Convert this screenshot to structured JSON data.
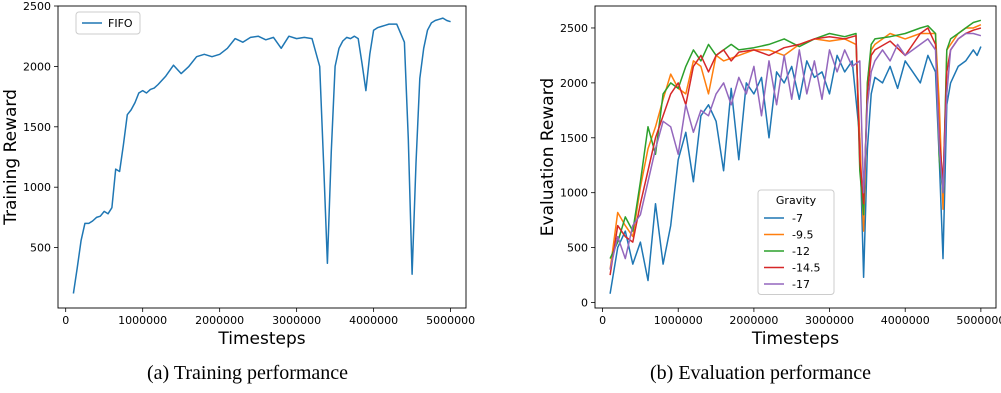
{
  "captions": {
    "left": "(a) Training performance",
    "right": "(b) Evaluation performance"
  },
  "chart_data": [
    {
      "type": "line",
      "xlabel": "Timesteps",
      "ylabel": "Training Reward",
      "xlim": [
        -100000,
        5200000
      ],
      "ylim": [
        0,
        2500
      ],
      "xticks": [
        0,
        1000000,
        2000000,
        3000000,
        4000000,
        5000000
      ],
      "xtick_labels": [
        "0",
        "1000000",
        "2000000",
        "3000000",
        "4000000",
        "5000000"
      ],
      "yticks": [
        500,
        1000,
        1500,
        2000,
        2500
      ],
      "ytick_labels": [
        "500",
        "1000",
        "1500",
        "2000",
        "2500"
      ],
      "legend": {
        "placement": "upper-left",
        "title": ""
      },
      "series": [
        {
          "name": "FIFO",
          "color": "#1f77b4",
          "x": [
            100000,
            150000,
            200000,
            250000,
            300000,
            350000,
            400000,
            450000,
            500000,
            550000,
            600000,
            650000,
            700000,
            750000,
            800000,
            850000,
            900000,
            950000,
            1000000,
            1050000,
            1100000,
            1150000,
            1200000,
            1300000,
            1400000,
            1500000,
            1600000,
            1700000,
            1800000,
            1900000,
            2000000,
            2100000,
            2200000,
            2300000,
            2400000,
            2500000,
            2600000,
            2700000,
            2800000,
            2900000,
            3000000,
            3100000,
            3200000,
            3300000,
            3350000,
            3400000,
            3450000,
            3500000,
            3550000,
            3600000,
            3650000,
            3700000,
            3750000,
            3800000,
            3850000,
            3900000,
            3950000,
            4000000,
            4050000,
            4100000,
            4150000,
            4200000,
            4300000,
            4400000,
            4450000,
            4500000,
            4550000,
            4600000,
            4650000,
            4700000,
            4750000,
            4800000,
            4850000,
            4900000,
            4950000,
            5000000
          ],
          "y": [
            120,
            330,
            560,
            700,
            700,
            720,
            750,
            760,
            800,
            780,
            830,
            1150,
            1130,
            1350,
            1600,
            1640,
            1700,
            1780,
            1800,
            1780,
            1810,
            1820,
            1850,
            1920,
            2010,
            1940,
            2000,
            2080,
            2100,
            2080,
            2100,
            2150,
            2230,
            2200,
            2240,
            2250,
            2220,
            2240,
            2150,
            2250,
            2230,
            2240,
            2230,
            2000,
            1200,
            370,
            1300,
            2000,
            2150,
            2210,
            2240,
            2230,
            2250,
            2230,
            2020,
            1800,
            2100,
            2300,
            2320,
            2330,
            2340,
            2350,
            2350,
            2200,
            1400,
            280,
            1200,
            1900,
            2150,
            2300,
            2360,
            2380,
            2390,
            2400,
            2380,
            2370
          ]
        }
      ]
    },
    {
      "type": "line",
      "xlabel": "Timesteps",
      "ylabel": "Evaluation Reward",
      "xlim": [
        -100000,
        5200000
      ],
      "ylim": [
        -50,
        2700
      ],
      "xticks": [
        0,
        1000000,
        2000000,
        3000000,
        4000000,
        5000000
      ],
      "xtick_labels": [
        "0",
        "1000000",
        "2000000",
        "3000000",
        "4000000",
        "5000000"
      ],
      "yticks": [
        0,
        500,
        1000,
        1500,
        2000,
        2500
      ],
      "ytick_labels": [
        "0",
        "500",
        "1000",
        "1500",
        "2000",
        "2500"
      ],
      "legend": {
        "placement": "lower-center",
        "title": "Gravity"
      },
      "series": [
        {
          "name": "-7",
          "color": "#1f77b4",
          "x": [
            100000,
            200000,
            300000,
            400000,
            500000,
            600000,
            700000,
            800000,
            900000,
            1000000,
            1100000,
            1200000,
            1300000,
            1400000,
            1500000,
            1600000,
            1700000,
            1800000,
            1900000,
            2000000,
            2100000,
            2200000,
            2300000,
            2400000,
            2500000,
            2600000,
            2700000,
            2800000,
            2900000,
            3000000,
            3100000,
            3200000,
            3300000,
            3400000,
            3450000,
            3500000,
            3550000,
            3600000,
            3700000,
            3800000,
            3900000,
            4000000,
            4100000,
            4200000,
            4300000,
            4400000,
            4450000,
            4500000,
            4550000,
            4600000,
            4700000,
            4800000,
            4900000,
            4950000,
            5000000
          ],
          "y": [
            80,
            500,
            650,
            350,
            550,
            200,
            900,
            350,
            700,
            1300,
            1550,
            1100,
            1700,
            1800,
            1650,
            1200,
            1950,
            1300,
            2000,
            1900,
            2050,
            1500,
            2100,
            2000,
            2150,
            1850,
            2200,
            2050,
            2100,
            1900,
            2250,
            2100,
            2200,
            1500,
            230,
            1400,
            1900,
            2050,
            2000,
            2150,
            1950,
            2200,
            2100,
            2000,
            2250,
            2100,
            1300,
            400,
            1800,
            2000,
            2150,
            2200,
            2300,
            2250,
            2330
          ]
        },
        {
          "name": "-9.5",
          "color": "#ff7f0e",
          "x": [
            100000,
            200000,
            300000,
            400000,
            500000,
            600000,
            700000,
            800000,
            900000,
            1000000,
            1100000,
            1200000,
            1300000,
            1400000,
            1500000,
            1600000,
            1800000,
            2000000,
            2200000,
            2400000,
            2600000,
            2800000,
            3000000,
            3200000,
            3350000,
            3400000,
            3450000,
            3500000,
            3550000,
            3600000,
            3800000,
            4000000,
            4200000,
            4300000,
            4400000,
            4450000,
            4500000,
            4550000,
            4600000,
            4700000,
            4800000,
            4900000,
            5000000
          ],
          "y": [
            300,
            820,
            700,
            600,
            1050,
            1400,
            1600,
            1850,
            2080,
            1950,
            1900,
            2200,
            2150,
            1900,
            2250,
            2200,
            2250,
            2300,
            2300,
            2250,
            2350,
            2400,
            2380,
            2400,
            2350,
            1500,
            650,
            2000,
            2300,
            2350,
            2450,
            2400,
            2450,
            2450,
            2450,
            1800,
            850,
            2300,
            2350,
            2450,
            2500,
            2500,
            2530
          ]
        },
        {
          "name": "-12",
          "color": "#2ca02c",
          "x": [
            100000,
            200000,
            300000,
            400000,
            500000,
            600000,
            700000,
            800000,
            900000,
            1000000,
            1100000,
            1200000,
            1300000,
            1400000,
            1500000,
            1600000,
            1700000,
            1800000,
            2000000,
            2200000,
            2400000,
            2600000,
            2800000,
            3000000,
            3200000,
            3350000,
            3400000,
            3450000,
            3500000,
            3550000,
            3600000,
            3800000,
            4000000,
            4200000,
            4300000,
            4400000,
            4450000,
            4500000,
            4550000,
            4600000,
            4700000,
            4800000,
            4900000,
            5000000
          ],
          "y": [
            400,
            550,
            780,
            650,
            1100,
            1600,
            1350,
            1900,
            2000,
            1950,
            2150,
            2300,
            2200,
            2350,
            2250,
            2300,
            2350,
            2300,
            2320,
            2350,
            2400,
            2330,
            2400,
            2450,
            2420,
            2450,
            1200,
            800,
            2000,
            2350,
            2400,
            2420,
            2450,
            2500,
            2520,
            2450,
            1300,
            1000,
            2300,
            2400,
            2450,
            2500,
            2550,
            2570
          ]
        },
        {
          "name": "-14.5",
          "color": "#d62728",
          "x": [
            100000,
            200000,
            300000,
            400000,
            500000,
            600000,
            700000,
            800000,
            900000,
            1000000,
            1100000,
            1200000,
            1300000,
            1400000,
            1500000,
            1600000,
            1700000,
            1800000,
            2000000,
            2200000,
            2400000,
            2600000,
            2800000,
            3000000,
            3200000,
            3350000,
            3400000,
            3450000,
            3500000,
            3550000,
            3600000,
            3800000,
            4000000,
            4200000,
            4300000,
            4400000,
            4450000,
            4500000,
            4550000,
            4600000,
            4700000,
            4800000,
            4900000,
            5000000
          ],
          "y": [
            250,
            700,
            600,
            550,
            900,
            1200,
            1500,
            1700,
            1900,
            2000,
            1800,
            2150,
            2250,
            2100,
            2250,
            2300,
            2200,
            2280,
            2300,
            2250,
            2320,
            2350,
            2400,
            2420,
            2400,
            2430,
            1300,
            900,
            1900,
            2250,
            2300,
            2380,
            2250,
            2450,
            2500,
            2350,
            1500,
            1100,
            2100,
            2300,
            2400,
            2450,
            2480,
            2500
          ]
        },
        {
          "name": "-17",
          "color": "#9467bd",
          "x": [
            100000,
            200000,
            300000,
            400000,
            500000,
            600000,
            700000,
            800000,
            900000,
            1000000,
            1100000,
            1200000,
            1300000,
            1400000,
            1500000,
            1600000,
            1700000,
            1800000,
            1900000,
            2000000,
            2100000,
            2200000,
            2300000,
            2400000,
            2500000,
            2600000,
            2700000,
            2800000,
            2900000,
            3000000,
            3100000,
            3200000,
            3300000,
            3400000,
            3450000,
            3500000,
            3550000,
            3600000,
            3700000,
            3800000,
            3900000,
            4000000,
            4100000,
            4200000,
            4300000,
            4400000,
            4450000,
            4500000,
            4550000,
            4600000,
            4700000,
            4800000,
            4900000,
            5000000
          ],
          "y": [
            300,
            600,
            400,
            700,
            800,
            1100,
            1400,
            1650,
            1600,
            1350,
            1800,
            1550,
            1750,
            1700,
            1900,
            2000,
            1800,
            2050,
            1900,
            2150,
            1700,
            2200,
            1800,
            2250,
            1850,
            2300,
            1900,
            2200,
            1850,
            2300,
            2100,
            2300,
            2150,
            2200,
            1000,
            1800,
            2100,
            2200,
            2300,
            2200,
            2350,
            2250,
            2300,
            2350,
            2400,
            2300,
            1400,
            1000,
            1900,
            2300,
            2400,
            2450,
            2450,
            2430
          ]
        }
      ]
    }
  ]
}
